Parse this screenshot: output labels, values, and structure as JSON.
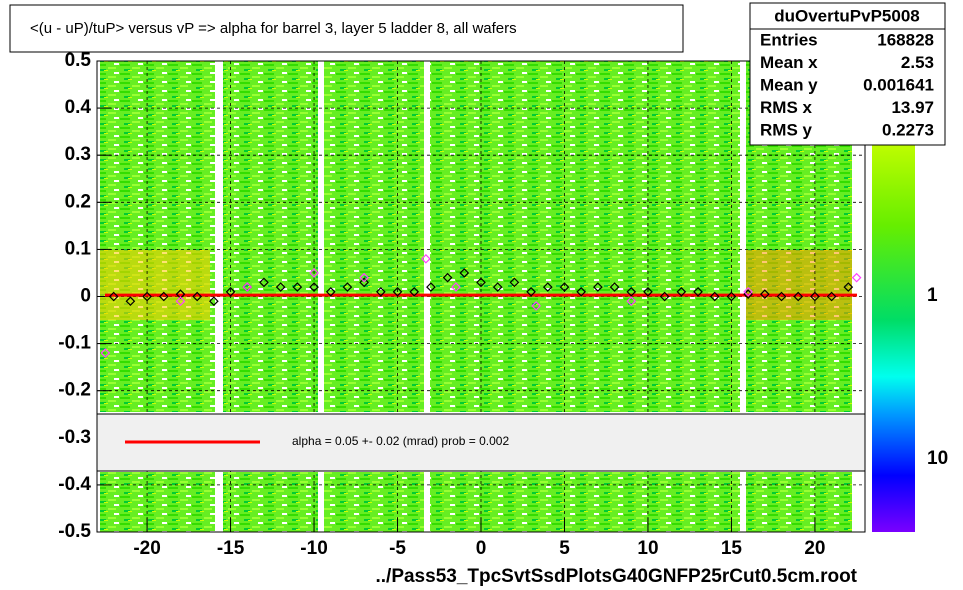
{
  "chart_data": {
    "type": "scatter",
    "title": "<(u - uP)/tuP> versus   vP => alpha for barrel 3, layer 5 ladder 8, all wafers",
    "x_label": "../Pass53_TpcSvtSsdPlotsG40GNFP25rCut0.5cm.root",
    "xlim": [
      -23,
      23
    ],
    "ylim": [
      -0.5,
      0.5
    ],
    "xticks": [
      -20,
      -15,
      -10,
      -5,
      0,
      5,
      10,
      15,
      20
    ],
    "yticks": [
      -0.5,
      -0.4,
      -0.3,
      -0.2,
      -0.1,
      0,
      0.1,
      0.2,
      0.3,
      0.4,
      0.5
    ],
    "grid": true,
    "series": [
      {
        "color": "#000000",
        "x": [
          -22,
          -21,
          -20,
          -19,
          -18,
          -17,
          -16,
          -15,
          -14,
          -13,
          -12,
          -11,
          -10,
          -9,
          -8,
          -7,
          -6,
          -5,
          -4,
          -3,
          -2,
          -1,
          0,
          1,
          2,
          3,
          4,
          5,
          6,
          7,
          8,
          9,
          10,
          11,
          12,
          13,
          14,
          15,
          16,
          17,
          18,
          19,
          20,
          21,
          22
        ],
        "values": [
          0,
          -0.01,
          0,
          0,
          0.005,
          0,
          -0.01,
          0.01,
          0.02,
          0.03,
          0.02,
          0.02,
          0.02,
          0.01,
          0.02,
          0.03,
          0.01,
          0.01,
          0.01,
          0.02,
          0.04,
          0.05,
          0.03,
          0.02,
          0.03,
          0.01,
          0.02,
          0.02,
          0.01,
          0.02,
          0.02,
          0.01,
          0.01,
          0,
          0.01,
          0.01,
          0,
          0,
          0.005,
          0.005,
          0,
          0,
          0,
          0,
          0.02
        ]
      },
      {
        "color": "#ff44ff",
        "x": [
          -22.5,
          -18,
          -14,
          -10,
          -7,
          -3.3,
          -1.5,
          3.3,
          9,
          16,
          22.5
        ],
        "values": [
          -0.12,
          -0.01,
          0.02,
          0.05,
          0.04,
          0.08,
          0.02,
          -0.02,
          -0.01,
          0.01,
          0.04
        ]
      }
    ],
    "fit": {
      "color": "#ff0000",
      "y": 0.003,
      "label": "alpha =    0.05 +-  0.02 (mrad) prob = 0.002"
    },
    "stats": {
      "name": "duOvertuPvP5008",
      "entries": [
        {
          "label": "Entries",
          "value": 168828
        },
        {
          "label": "Mean x",
          "value": 2.53
        },
        {
          "label": "Mean y",
          "value": 0.001641
        },
        {
          "label": "RMS x",
          "value": 13.97
        },
        {
          "label": "RMS y",
          "value": 0.2273
        }
      ]
    },
    "colorbar": {
      "labels": [
        "1",
        "10"
      ]
    }
  }
}
